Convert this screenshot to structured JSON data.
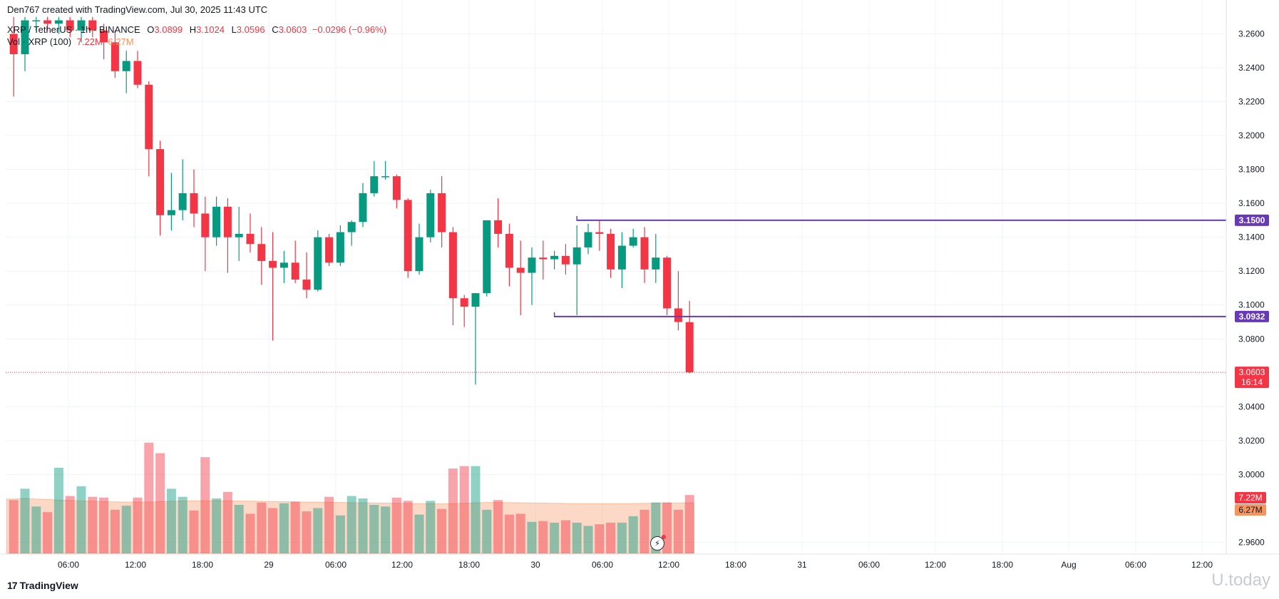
{
  "header": {
    "created_by": "Den767 created with TradingView.com, Jul 30, 2025 11:43 UTC",
    "symbol": "XRP / TetherUS · 1h · BINANCE",
    "o_label": "O",
    "o_value": "3.0899",
    "h_label": "H",
    "h_value": "3.1024",
    "l_label": "L",
    "l_value": "3.0596",
    "c_label": "C",
    "c_value": "3.0603",
    "change": "−0.0296 (−0.96%)",
    "vol_label": "Vol · XRP (100)",
    "vol_value": "7.22M",
    "vol_ma_value": "6.27M"
  },
  "branding": {
    "logo_text": "TradingView",
    "watermark": "U.today"
  },
  "icons": {
    "logo": "tradingview-logo-icon",
    "replay": "lightning-icon"
  },
  "colors": {
    "up": "#089981",
    "down": "#f23645",
    "level": "#673ab7",
    "vol_ma": "#f7935c"
  },
  "chart_data": {
    "type": "candlestick",
    "interval": "1h",
    "ylim": [
      2.95,
      3.27
    ],
    "y_ticks": [
      "3.2600",
      "3.2400",
      "3.2200",
      "3.2000",
      "3.1800",
      "3.1600",
      "3.1400",
      "3.1200",
      "3.1000",
      "3.0800",
      "3.0400",
      "3.0200",
      "3.0000",
      "2.9600"
    ],
    "x_ticks": [
      "06:00",
      "12:00",
      "18:00",
      "29",
      "06:00",
      "12:00",
      "18:00",
      "30",
      "06:00",
      "12:00",
      "18:00",
      "31",
      "06:00",
      "12:00",
      "18:00",
      "Aug",
      "06:00",
      "12:00"
    ],
    "candles": [
      {
        "o": 3.26,
        "h": 3.27,
        "l": 3.223,
        "c": 3.248
      },
      {
        "o": 3.248,
        "h": 3.27,
        "l": 3.238,
        "c": 3.268
      },
      {
        "o": 3.268,
        "h": 3.27,
        "l": 3.262,
        "c": 3.268
      },
      {
        "o": 3.268,
        "h": 3.27,
        "l": 3.262,
        "c": 3.266
      },
      {
        "o": 3.266,
        "h": 3.27,
        "l": 3.26,
        "c": 3.268
      },
      {
        "o": 3.268,
        "h": 3.27,
        "l": 3.258,
        "c": 3.262
      },
      {
        "o": 3.262,
        "h": 3.27,
        "l": 3.255,
        "c": 3.268
      },
      {
        "o": 3.268,
        "h": 3.27,
        "l": 3.258,
        "c": 3.262
      },
      {
        "o": 3.262,
        "h": 3.266,
        "l": 3.245,
        "c": 3.255
      },
      {
        "o": 3.255,
        "h": 3.262,
        "l": 3.234,
        "c": 3.238
      },
      {
        "o": 3.238,
        "h": 3.25,
        "l": 3.225,
        "c": 3.244
      },
      {
        "o": 3.244,
        "h": 3.25,
        "l": 3.228,
        "c": 3.23
      },
      {
        "o": 3.23,
        "h": 3.232,
        "l": 3.176,
        "c": 3.192
      },
      {
        "o": 3.192,
        "h": 3.197,
        "l": 3.141,
        "c": 3.153
      },
      {
        "o": 3.153,
        "h": 3.178,
        "l": 3.144,
        "c": 3.156
      },
      {
        "o": 3.156,
        "h": 3.186,
        "l": 3.15,
        "c": 3.166
      },
      {
        "o": 3.166,
        "h": 3.18,
        "l": 3.146,
        "c": 3.154
      },
      {
        "o": 3.154,
        "h": 3.164,
        "l": 3.12,
        "c": 3.14
      },
      {
        "o": 3.14,
        "h": 3.164,
        "l": 3.135,
        "c": 3.158
      },
      {
        "o": 3.158,
        "h": 3.163,
        "l": 3.119,
        "c": 3.14
      },
      {
        "o": 3.14,
        "h": 3.158,
        "l": 3.126,
        "c": 3.142
      },
      {
        "o": 3.142,
        "h": 3.154,
        "l": 3.131,
        "c": 3.136
      },
      {
        "o": 3.136,
        "h": 3.146,
        "l": 3.112,
        "c": 3.126
      },
      {
        "o": 3.126,
        "h": 3.143,
        "l": 3.079,
        "c": 3.122
      },
      {
        "o": 3.122,
        "h": 3.132,
        "l": 3.113,
        "c": 3.125
      },
      {
        "o": 3.125,
        "h": 3.138,
        "l": 3.113,
        "c": 3.115
      },
      {
        "o": 3.115,
        "h": 3.131,
        "l": 3.104,
        "c": 3.109
      },
      {
        "o": 3.109,
        "h": 3.144,
        "l": 3.108,
        "c": 3.14
      },
      {
        "o": 3.14,
        "h": 3.142,
        "l": 3.123,
        "c": 3.125
      },
      {
        "o": 3.125,
        "h": 3.147,
        "l": 3.123,
        "c": 3.143
      },
      {
        "o": 3.143,
        "h": 3.15,
        "l": 3.135,
        "c": 3.149
      },
      {
        "o": 3.149,
        "h": 3.172,
        "l": 3.146,
        "c": 3.166
      },
      {
        "o": 3.166,
        "h": 3.185,
        "l": 3.164,
        "c": 3.176
      },
      {
        "o": 3.176,
        "h": 3.185,
        "l": 3.174,
        "c": 3.176
      },
      {
        "o": 3.176,
        "h": 3.177,
        "l": 3.157,
        "c": 3.162
      },
      {
        "o": 3.162,
        "h": 3.163,
        "l": 3.116,
        "c": 3.12
      },
      {
        "o": 3.12,
        "h": 3.148,
        "l": 3.118,
        "c": 3.14
      },
      {
        "o": 3.14,
        "h": 3.168,
        "l": 3.137,
        "c": 3.166
      },
      {
        "o": 3.166,
        "h": 3.176,
        "l": 3.134,
        "c": 3.143
      },
      {
        "o": 3.143,
        "h": 3.146,
        "l": 3.088,
        "c": 3.104
      },
      {
        "o": 3.104,
        "h": 3.106,
        "l": 3.087,
        "c": 3.099
      },
      {
        "o": 3.099,
        "h": 3.107,
        "l": 3.053,
        "c": 3.107
      },
      {
        "o": 3.107,
        "h": 3.15,
        "l": 3.105,
        "c": 3.15
      },
      {
        "o": 3.15,
        "h": 3.163,
        "l": 3.134,
        "c": 3.142
      },
      {
        "o": 3.142,
        "h": 3.148,
        "l": 3.111,
        "c": 3.122
      },
      {
        "o": 3.122,
        "h": 3.138,
        "l": 3.094,
        "c": 3.119
      },
      {
        "o": 3.119,
        "h": 3.134,
        "l": 3.1,
        "c": 3.128
      },
      {
        "o": 3.128,
        "h": 3.138,
        "l": 3.115,
        "c": 3.127
      },
      {
        "o": 3.127,
        "h": 3.132,
        "l": 3.121,
        "c": 3.129
      },
      {
        "o": 3.129,
        "h": 3.136,
        "l": 3.118,
        "c": 3.124
      },
      {
        "o": 3.124,
        "h": 3.147,
        "l": 3.094,
        "c": 3.134
      },
      {
        "o": 3.134,
        "h": 3.148,
        "l": 3.13,
        "c": 3.143
      },
      {
        "o": 3.143,
        "h": 3.15,
        "l": 3.132,
        "c": 3.142
      },
      {
        "o": 3.142,
        "h": 3.145,
        "l": 3.116,
        "c": 3.121
      },
      {
        "o": 3.121,
        "h": 3.143,
        "l": 3.11,
        "c": 3.135
      },
      {
        "o": 3.135,
        "h": 3.145,
        "l": 3.134,
        "c": 3.14
      },
      {
        "o": 3.14,
        "h": 3.146,
        "l": 3.113,
        "c": 3.121
      },
      {
        "o": 3.121,
        "h": 3.142,
        "l": 3.113,
        "c": 3.128
      },
      {
        "o": 3.128,
        "h": 3.129,
        "l": 3.094,
        "c": 3.098
      },
      {
        "o": 3.098,
        "h": 3.12,
        "l": 3.085,
        "c": 3.09
      },
      {
        "o": 3.0899,
        "h": 3.1024,
        "l": 3.0596,
        "c": 3.0603
      }
    ],
    "volume_ma": [
      6.73,
      6.8,
      6.72,
      6.68,
      6.6,
      6.55,
      6.5,
      6.45,
      6.4,
      6.38,
      6.36,
      6.35,
      6.35,
      6.4,
      6.45,
      6.48,
      6.5,
      6.5,
      6.52,
      6.5,
      6.48,
      6.46,
      6.44,
      6.42,
      6.4,
      6.38,
      6.36,
      6.34,
      6.32,
      6.3,
      6.28,
      6.26,
      6.24,
      6.22,
      6.2,
      6.18,
      6.16,
      6.14,
      6.12,
      6.15,
      6.2,
      6.26,
      6.3,
      6.3,
      6.28,
      6.26,
      6.24,
      6.22,
      6.2,
      6.18,
      6.16,
      6.15,
      6.14,
      6.14,
      6.15,
      6.17,
      6.19,
      6.21,
      6.23,
      6.25,
      6.27
    ],
    "volume": [
      6.6,
      8.0,
      5.8,
      5.1,
      10.6,
      7.1,
      8.3,
      7.0,
      6.9,
      5.4,
      5.9,
      6.9,
      13.7,
      12.4,
      8.0,
      7.0,
      5.3,
      11.9,
      6.8,
      7.6,
      6.0,
      4.9,
      6.3,
      5.6,
      6.2,
      6.4,
      5.2,
      5.6,
      7.0,
      4.7,
      7.1,
      6.8,
      6.0,
      5.8,
      6.9,
      6.5,
      4.8,
      6.5,
      5.5,
      10.5,
      10.8,
      10.8,
      5.4,
      6.6,
      4.8,
      4.9,
      3.9,
      4.0,
      3.8,
      4.1,
      3.8,
      3.4,
      3.6,
      3.8,
      3.8,
      4.6,
      5.4,
      6.3,
      6.3,
      5.4,
      7.22
    ],
    "volume_max": 15.5,
    "horizontal_levels": [
      {
        "price": 3.15,
        "label": "3.1500",
        "start_index": 50
      },
      {
        "price": 3.0932,
        "label": "3.0932",
        "start_index": 48
      }
    ],
    "last_price": {
      "price": 3.0603,
      "label": "3.0603",
      "countdown": "16:14"
    }
  }
}
